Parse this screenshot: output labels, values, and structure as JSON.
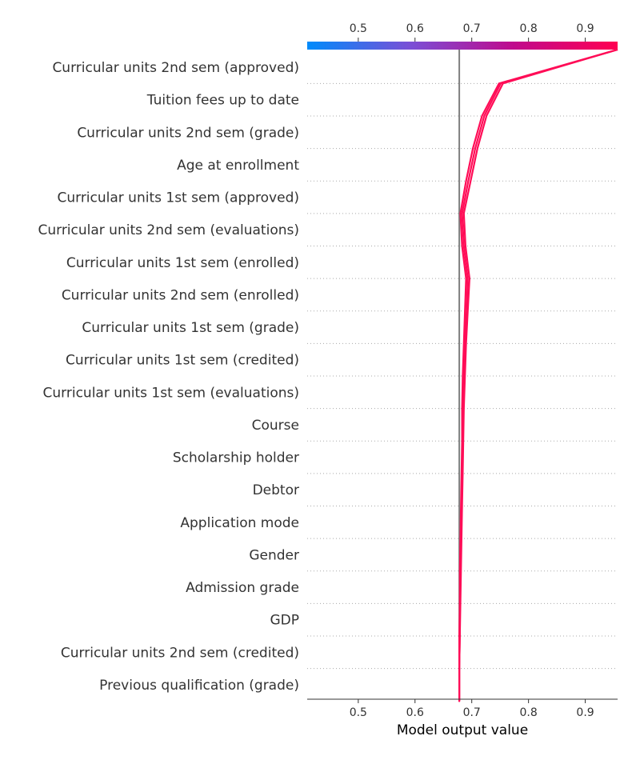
{
  "chart_data": {
    "type": "line",
    "subtype": "shap-decision-plot",
    "xlabel": "Model output value",
    "xlim": [
      0.41,
      0.957
    ],
    "xticks": [
      0.5,
      0.6,
      0.7,
      0.8,
      0.9
    ],
    "xtick_labels": [
      "0.5",
      "0.6",
      "0.7",
      "0.8",
      "0.9"
    ],
    "base_value": 0.678,
    "grid": "dotted horizontal separators",
    "colorbar": {
      "position": "top",
      "min": 0.41,
      "max": 0.957,
      "colors": [
        "#008bfb",
        "#7a4fd6",
        "#c00a8c",
        "#ff0052"
      ]
    },
    "line_color": "#ff0d57",
    "features": [
      "Curricular units 2nd sem (approved)",
      "Tuition fees up to date",
      "Curricular units 2nd sem (grade)",
      "Age at enrollment",
      "Curricular units 1st sem (approved)",
      "Curricular units 2nd sem (evaluations)",
      "Curricular units 1st sem (enrolled)",
      "Curricular units 2nd sem (enrolled)",
      "Curricular units 1st sem (grade)",
      "Curricular units 1st sem (credited)",
      "Curricular units 1st sem (evaluations)",
      "Course",
      "Scholarship holder",
      "Debtor",
      "Application mode",
      "Gender",
      "Admission grade",
      "GDP",
      "Curricular units 2nd sem (credited)",
      "Previous qualification (grade)"
    ],
    "series": [
      {
        "values": [
          0.678,
          0.678,
          0.678,
          0.678,
          0.679,
          0.679,
          0.68,
          0.681,
          0.682,
          0.683,
          0.683,
          0.684,
          0.686,
          0.688,
          0.69,
          0.683,
          0.68,
          0.69,
          0.702,
          0.718,
          0.748,
          0.957
        ]
      },
      {
        "values": [
          0.678,
          0.678,
          0.678,
          0.679,
          0.679,
          0.68,
          0.681,
          0.682,
          0.683,
          0.684,
          0.685,
          0.686,
          0.688,
          0.691,
          0.693,
          0.686,
          0.683,
          0.694,
          0.706,
          0.722,
          0.751,
          0.957
        ]
      },
      {
        "values": [
          0.678,
          0.678,
          0.678,
          0.679,
          0.68,
          0.681,
          0.682,
          0.683,
          0.684,
          0.685,
          0.686,
          0.688,
          0.69,
          0.693,
          0.696,
          0.689,
          0.686,
          0.698,
          0.71,
          0.726,
          0.755,
          0.957
        ]
      }
    ]
  }
}
